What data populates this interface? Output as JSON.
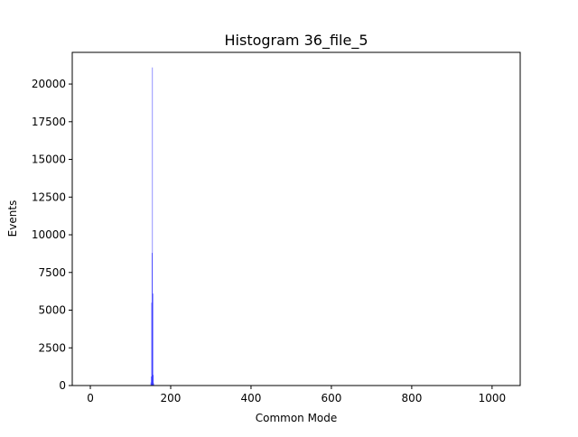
{
  "chart_data": {
    "type": "bar",
    "title": "Histogram 36_file_5",
    "xlabel": "Common Mode",
    "ylabel": "Events",
    "xlim": [
      -45,
      1070
    ],
    "ylim": [
      0,
      22100
    ],
    "x_ticks": [
      0,
      200,
      400,
      600,
      800,
      1000
    ],
    "y_ticks": [
      0,
      2500,
      5000,
      7500,
      10000,
      12500,
      15000,
      17500,
      20000
    ],
    "grid": false,
    "bar_color": "#0000ff",
    "bar_alpha": 0.7,
    "series": [
      {
        "x": [
          150,
          151,
          152,
          153,
          154,
          155,
          156,
          157
        ],
        "values": [
          200,
          600,
          5500,
          8800,
          21100,
          6100,
          700,
          150
        ]
      }
    ]
  }
}
